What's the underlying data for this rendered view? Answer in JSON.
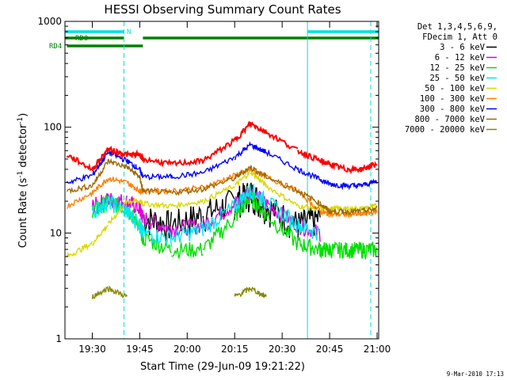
{
  "chart_data": {
    "type": "line",
    "title": "HESSI Observing Summary Count Rates",
    "xlabel": "Start Time (29-Jun-09 19:21:22)",
    "ylabel": "Count Rate (s",
    "ylabel_sup1": "-1",
    "ylabel_mid": " detector",
    "ylabel_sup2": "-1",
    "ylabel_end": ")",
    "y_scale": "log",
    "ylim": [
      1,
      1000
    ],
    "xlim": [
      "19:21:22",
      "21:00:30"
    ],
    "x_ticks": [
      "19:30",
      "19:45",
      "20:00",
      "20:15",
      "20:30",
      "20:45",
      "21:00"
    ],
    "y_ticks": [
      "1",
      "10",
      "100",
      "1000"
    ],
    "legend_header": [
      "Det 1,3,4,5,6,9,",
      "FDecim 1, Att 0"
    ],
    "legend_position": "top-right",
    "x": [
      "19:22",
      "19:30",
      "19:35",
      "19:41",
      "19:45",
      "19:46",
      "19:55",
      "20:05",
      "20:15",
      "20:20",
      "20:25",
      "20:35",
      "20:42",
      "20:45",
      "20:50",
      "20:55",
      "21:00"
    ],
    "series": [
      {
        "name": "3 - 6 keV",
        "color": "#000000",
        "values": [
          null,
          null,
          null,
          null,
          null,
          14,
          12,
          15,
          20,
          24,
          18,
          12,
          14,
          null,
          null,
          null,
          null
        ]
      },
      {
        "name": "6 - 12 keV",
        "color": "#e000e0",
        "values": [
          null,
          18,
          21,
          20,
          17,
          14,
          11,
          12,
          19,
          25,
          19,
          12,
          10,
          null,
          null,
          null,
          null
        ]
      },
      {
        "name": "12 - 25 keV",
        "color": "#00e000",
        "values": [
          null,
          16,
          20,
          17,
          12,
          9,
          7,
          7,
          14,
          22,
          15,
          8,
          7,
          7,
          7,
          7,
          7
        ]
      },
      {
        "name": "25 - 50 keV",
        "color": "#00e8e8",
        "values": [
          null,
          16,
          20,
          16,
          12,
          10,
          9,
          11,
          18,
          26,
          20,
          12,
          10,
          null,
          null,
          null,
          null
        ]
      },
      {
        "name": "50 - 100 keV",
        "color": "#d8d800",
        "values": [
          6,
          8,
          12,
          20,
          20,
          19,
          18,
          20,
          28,
          38,
          28,
          18,
          17,
          17,
          17,
          17,
          18
        ]
      },
      {
        "name": "100 - 300 keV",
        "color": "#ff7f00",
        "values": [
          18,
          24,
          33,
          30,
          25,
          25,
          25,
          27,
          35,
          40,
          34,
          25,
          16,
          15,
          15,
          15,
          16
        ]
      },
      {
        "name": "300 - 800 keV",
        "color": "#0000ff",
        "values": [
          30,
          35,
          58,
          48,
          40,
          34,
          34,
          37,
          52,
          68,
          58,
          40,
          32,
          29,
          28,
          28,
          31
        ]
      },
      {
        "name": "800 - 7000 keV",
        "color": "#a06800",
        "values": [
          25,
          28,
          48,
          42,
          34,
          25,
          24,
          26,
          33,
          42,
          34,
          25,
          19,
          16,
          16,
          16,
          17
        ]
      },
      {
        "name": "7000 - 20000 keV",
        "color": "#888800",
        "values": [
          null,
          2.5,
          3,
          2.5,
          null,
          null,
          null,
          null,
          2.5,
          3,
          2.5,
          null,
          null,
          null,
          null,
          null,
          null
        ]
      },
      {
        "name": "",
        "color": "#ff0000",
        "values": [
          55,
          40,
          62,
          55,
          55,
          50,
          45,
          48,
          75,
          108,
          90,
          60,
          48,
          45,
          40,
          40,
          45
        ]
      }
    ],
    "flags": [
      {
        "label": "N",
        "color": "#00e0e0",
        "intervals": [
          [
            "19:21:22",
            "19:40"
          ],
          [
            "20:38",
            "21:00:30"
          ]
        ]
      },
      {
        "label": "RD0",
        "color": "#008000",
        "intervals": [
          [
            "19:21:22",
            "19:40"
          ],
          [
            "19:46",
            "21:00:30"
          ]
        ]
      },
      {
        "label": "RD4",
        "color": "#008000",
        "intervals": [
          [
            "19:22",
            "19:46"
          ]
        ]
      }
    ],
    "vertical_lines": {
      "solid": [
        "19:21:22",
        "20:38"
      ],
      "dashed": [
        "19:40",
        "20:58"
      ]
    },
    "grid": false
  },
  "footer": {
    "timestamp": "9-Mar-2010 17:13"
  }
}
